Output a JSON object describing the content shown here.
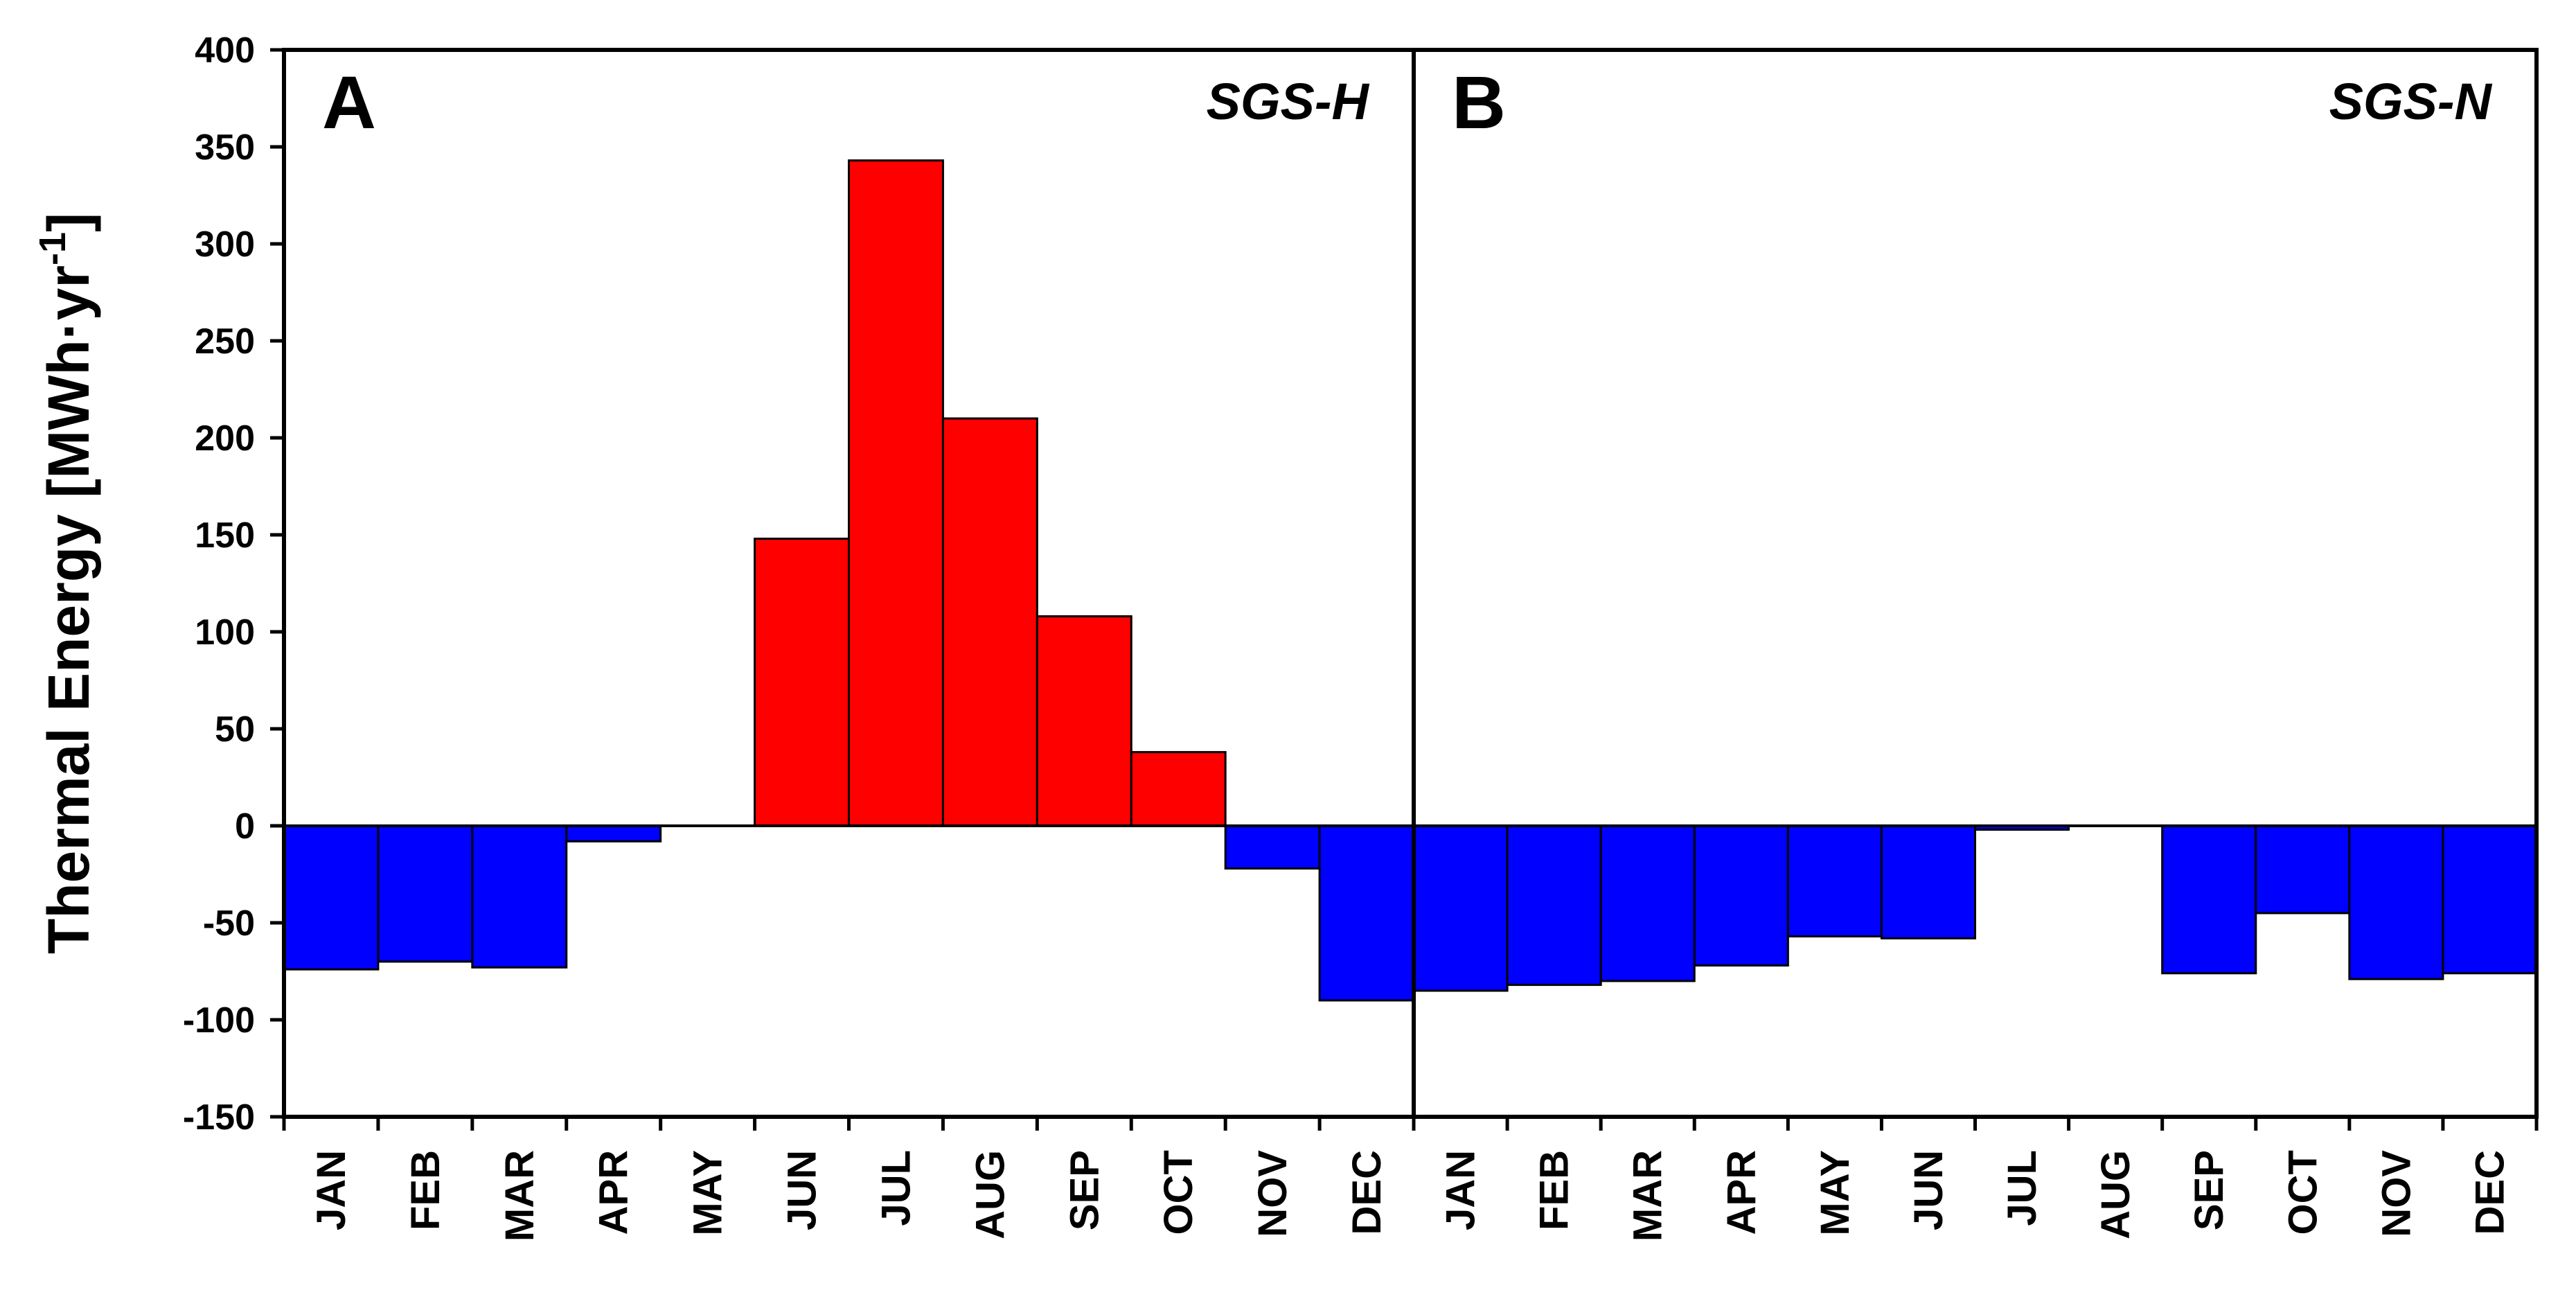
{
  "chart_data": {
    "type": "bar",
    "ylabel": "Thermal Energy [MWh·yr",
    "ylabel_superscript": "-1",
    "ylabel_close": "]",
    "ylim": [
      -150,
      400
    ],
    "yticks": [
      -150,
      -100,
      -50,
      0,
      50,
      100,
      150,
      200,
      250,
      300,
      350,
      400
    ],
    "panels": [
      {
        "letter": "A",
        "name": "SGS-H",
        "categories": [
          "JAN",
          "FEB",
          "MAR",
          "APR",
          "MAY",
          "JUN",
          "JUL",
          "AUG",
          "SEP",
          "OCT",
          "NOV",
          "DEC"
        ],
        "values": [
          -74,
          -70,
          -73,
          -8,
          0,
          148,
          343,
          210,
          108,
          38,
          -22,
          -90
        ]
      },
      {
        "letter": "B",
        "name": "SGS-N",
        "categories": [
          "JAN",
          "FEB",
          "MAR",
          "APR",
          "MAY",
          "JUN",
          "JUL",
          "AUG",
          "SEP",
          "OCT",
          "NOV",
          "DEC"
        ],
        "values": [
          -85,
          -82,
          -80,
          -72,
          -57,
          -58,
          -2,
          0,
          -76,
          -45,
          -79,
          -76
        ]
      }
    ],
    "colors": {
      "positive": "#ff0000",
      "negative": "#0000ff",
      "axis": "#000000"
    }
  }
}
